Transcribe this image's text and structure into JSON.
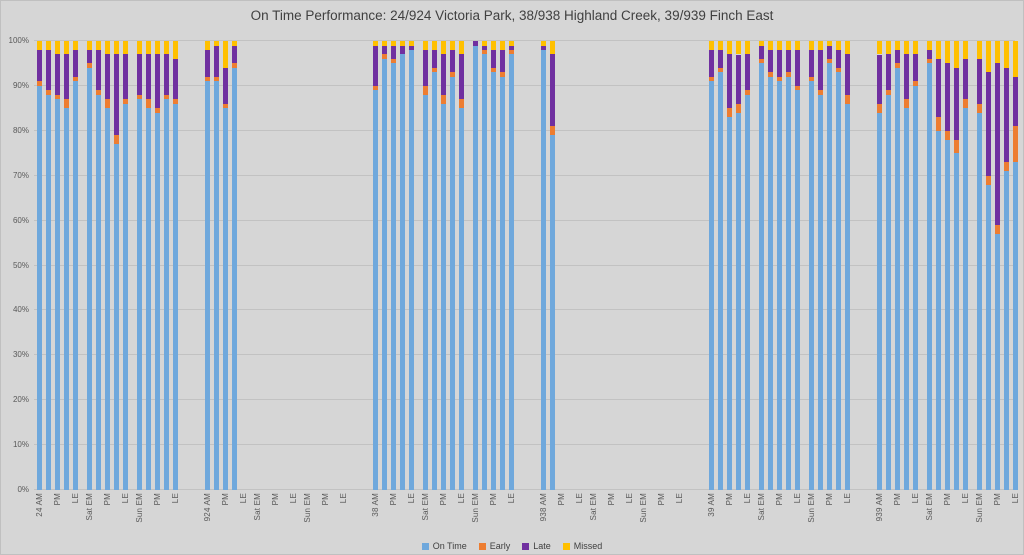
{
  "chart_data": {
    "type": "bar",
    "stacked": true,
    "percent": true,
    "title": "On Time Performance: 24/924 Victoria Park, 38/938 Highland Creek, 39/939 Finch East",
    "ylim": [
      0,
      100
    ],
    "yticks": [
      "0%",
      "10%",
      "20%",
      "30%",
      "40%",
      "50%",
      "60%",
      "70%",
      "80%",
      "90%",
      "100%"
    ],
    "gridlines": true,
    "legend_position": "bottom",
    "series": [
      "On Time",
      "Early",
      "Late",
      "Missed"
    ],
    "colors": [
      "#6FA8DC",
      "#ED7D31",
      "#7030A0",
      "#FFC000"
    ],
    "slots_per_group": 15,
    "slots_per_cluster": 5,
    "groups": [
      {
        "route": "24",
        "tick_labels": [
          {
            "slot": 0,
            "text": "24 AM"
          },
          {
            "slot": 2,
            "text": "PM"
          },
          {
            "slot": 4,
            "text": "LE"
          },
          {
            "slot": 5,
            "text": "Sat EM"
          },
          {
            "slot": 7,
            "text": "PM"
          },
          {
            "slot": 9,
            "text": "LE"
          },
          {
            "slot": 10,
            "text": "Sun EM"
          },
          {
            "slot": 12,
            "text": "PM"
          },
          {
            "slot": 14,
            "text": "LE"
          }
        ],
        "bars": [
          {
            "slot": 0,
            "values": [
              90,
              1,
              7,
              2
            ]
          },
          {
            "slot": 1,
            "values": [
              88,
              1,
              9,
              2
            ]
          },
          {
            "slot": 2,
            "values": [
              87,
              1,
              9,
              3
            ]
          },
          {
            "slot": 3,
            "values": [
              85,
              2,
              10,
              3
            ]
          },
          {
            "slot": 4,
            "values": [
              91,
              1,
              6,
              2
            ]
          },
          {
            "slot": 5,
            "values": [
              94,
              1,
              3,
              2
            ]
          },
          {
            "slot": 6,
            "values": [
              88,
              1,
              9,
              2
            ]
          },
          {
            "slot": 7,
            "values": [
              85,
              2,
              10,
              3
            ]
          },
          {
            "slot": 8,
            "values": [
              77,
              2,
              18,
              3
            ]
          },
          {
            "slot": 9,
            "values": [
              86,
              1,
              10,
              3
            ]
          },
          {
            "slot": 10,
            "values": [
              87,
              1,
              9,
              3
            ]
          },
          {
            "slot": 11,
            "values": [
              85,
              2,
              10,
              3
            ]
          },
          {
            "slot": 12,
            "values": [
              84,
              1,
              12,
              3
            ]
          },
          {
            "slot": 13,
            "values": [
              87,
              1,
              9,
              3
            ]
          },
          {
            "slot": 14,
            "values": [
              86,
              1,
              9,
              4
            ]
          }
        ]
      },
      {
        "route": "924",
        "tick_labels": [
          {
            "slot": 0,
            "text": "924 AM"
          },
          {
            "slot": 2,
            "text": "PM"
          },
          {
            "slot": 4,
            "text": "LE"
          },
          {
            "slot": 5,
            "text": "Sat EM"
          },
          {
            "slot": 7,
            "text": "PM"
          },
          {
            "slot": 9,
            "text": "LE"
          },
          {
            "slot": 10,
            "text": "Sun EM"
          },
          {
            "slot": 12,
            "text": "PM"
          },
          {
            "slot": 14,
            "text": "LE"
          }
        ],
        "bars": [
          {
            "slot": 0,
            "values": [
              91,
              1,
              6,
              2
            ]
          },
          {
            "slot": 1,
            "values": [
              91,
              1,
              7,
              1
            ]
          },
          {
            "slot": 2,
            "values": [
              85,
              1,
              8,
              6
            ]
          },
          {
            "slot": 3,
            "values": [
              94,
              1,
              4,
              1
            ]
          }
        ]
      },
      {
        "route": "38",
        "tick_labels": [
          {
            "slot": 0,
            "text": "38 AM"
          },
          {
            "slot": 2,
            "text": "PM"
          },
          {
            "slot": 4,
            "text": "LE"
          },
          {
            "slot": 5,
            "text": "Sat EM"
          },
          {
            "slot": 7,
            "text": "PM"
          },
          {
            "slot": 9,
            "text": "LE"
          },
          {
            "slot": 10,
            "text": "Sun EM"
          },
          {
            "slot": 12,
            "text": "PM"
          },
          {
            "slot": 14,
            "text": "LE"
          }
        ],
        "bars": [
          {
            "slot": 0,
            "values": [
              89,
              1,
              9,
              1
            ]
          },
          {
            "slot": 1,
            "values": [
              96,
              1,
              2,
              1
            ]
          },
          {
            "slot": 2,
            "values": [
              95,
              1,
              3,
              1
            ]
          },
          {
            "slot": 3,
            "values": [
              97,
              0,
              2,
              1
            ]
          },
          {
            "slot": 4,
            "values": [
              98,
              0,
              1,
              1
            ]
          },
          {
            "slot": 5,
            "values": [
              88,
              2,
              8,
              2
            ]
          },
          {
            "slot": 6,
            "values": [
              93,
              1,
              4,
              2
            ]
          },
          {
            "slot": 7,
            "values": [
              86,
              2,
              9,
              3
            ]
          },
          {
            "slot": 8,
            "values": [
              92,
              1,
              5,
              2
            ]
          },
          {
            "slot": 9,
            "values": [
              85,
              2,
              10,
              3
            ]
          },
          {
            "slot": 10,
            "values": [
              99,
              0,
              1,
              0
            ]
          },
          {
            "slot": 11,
            "values": [
              97,
              1,
              1,
              1
            ]
          },
          {
            "slot": 12,
            "values": [
              93,
              1,
              4,
              2
            ]
          },
          {
            "slot": 13,
            "values": [
              92,
              1,
              5,
              2
            ]
          },
          {
            "slot": 14,
            "values": [
              97,
              1,
              1,
              1
            ]
          }
        ]
      },
      {
        "route": "938",
        "tick_labels": [
          {
            "slot": 0,
            "text": "938 AM"
          },
          {
            "slot": 2,
            "text": "PM"
          },
          {
            "slot": 4,
            "text": "LE"
          },
          {
            "slot": 5,
            "text": "Sat EM"
          },
          {
            "slot": 7,
            "text": "PM"
          },
          {
            "slot": 9,
            "text": "LE"
          },
          {
            "slot": 10,
            "text": "Sun EM"
          },
          {
            "slot": 12,
            "text": "PM"
          },
          {
            "slot": 14,
            "text": "LE"
          }
        ],
        "bars": [
          {
            "slot": 0,
            "values": [
              98,
              0,
              1,
              1
            ]
          },
          {
            "slot": 1,
            "values": [
              79,
              2,
              16,
              3
            ]
          }
        ]
      },
      {
        "route": "39",
        "tick_labels": [
          {
            "slot": 0,
            "text": "39 AM"
          },
          {
            "slot": 2,
            "text": "PM"
          },
          {
            "slot": 4,
            "text": "LE"
          },
          {
            "slot": 5,
            "text": "Sat EM"
          },
          {
            "slot": 7,
            "text": "PM"
          },
          {
            "slot": 9,
            "text": "LE"
          },
          {
            "slot": 10,
            "text": "Sun EM"
          },
          {
            "slot": 12,
            "text": "PM"
          },
          {
            "slot": 14,
            "text": "LE"
          }
        ],
        "bars": [
          {
            "slot": 0,
            "values": [
              91,
              1,
              6,
              2
            ]
          },
          {
            "slot": 1,
            "values": [
              93,
              1,
              4,
              2
            ]
          },
          {
            "slot": 2,
            "values": [
              83,
              2,
              12,
              3
            ]
          },
          {
            "slot": 3,
            "values": [
              84,
              2,
              11,
              3
            ]
          },
          {
            "slot": 4,
            "values": [
              88,
              1,
              8,
              3
            ]
          },
          {
            "slot": 5,
            "values": [
              95,
              1,
              3,
              1
            ]
          },
          {
            "slot": 6,
            "values": [
              92,
              1,
              5,
              2
            ]
          },
          {
            "slot": 7,
            "values": [
              91,
              1,
              6,
              2
            ]
          },
          {
            "slot": 8,
            "values": [
              92,
              1,
              5,
              2
            ]
          },
          {
            "slot": 9,
            "values": [
              89,
              1,
              8,
              2
            ]
          },
          {
            "slot": 10,
            "values": [
              91,
              1,
              6,
              2
            ]
          },
          {
            "slot": 11,
            "values": [
              88,
              1,
              9,
              2
            ]
          },
          {
            "slot": 12,
            "values": [
              95,
              1,
              3,
              1
            ]
          },
          {
            "slot": 13,
            "values": [
              93,
              1,
              4,
              2
            ]
          },
          {
            "slot": 14,
            "values": [
              86,
              2,
              9,
              3
            ]
          }
        ]
      },
      {
        "route": "939",
        "tick_labels": [
          {
            "slot": 0,
            "text": "939 AM"
          },
          {
            "slot": 2,
            "text": "PM"
          },
          {
            "slot": 4,
            "text": "LE"
          },
          {
            "slot": 5,
            "text": "Sat EM"
          },
          {
            "slot": 7,
            "text": "PM"
          },
          {
            "slot": 9,
            "text": "LE"
          },
          {
            "slot": 10,
            "text": "Sun EM"
          },
          {
            "slot": 12,
            "text": "PM"
          },
          {
            "slot": 14,
            "text": "LE"
          }
        ],
        "bars": [
          {
            "slot": 0,
            "values": [
              84,
              2,
              11,
              3
            ]
          },
          {
            "slot": 1,
            "values": [
              88,
              1,
              8,
              3
            ]
          },
          {
            "slot": 2,
            "values": [
              94,
              1,
              3,
              2
            ]
          },
          {
            "slot": 3,
            "values": [
              85,
              2,
              10,
              3
            ]
          },
          {
            "slot": 4,
            "values": [
              90,
              1,
              6,
              3
            ]
          },
          {
            "slot": 5,
            "values": [
              95,
              1,
              2,
              2
            ]
          },
          {
            "slot": 6,
            "values": [
              80,
              3,
              13,
              4
            ]
          },
          {
            "slot": 7,
            "values": [
              78,
              2,
              15,
              5
            ]
          },
          {
            "slot": 8,
            "values": [
              75,
              3,
              16,
              6
            ]
          },
          {
            "slot": 9,
            "values": [
              85,
              2,
              9,
              4
            ]
          },
          {
            "slot": 10,
            "values": [
              84,
              2,
              10,
              4
            ]
          },
          {
            "slot": 11,
            "values": [
              68,
              2,
              23,
              7
            ]
          },
          {
            "slot": 12,
            "values": [
              57,
              2,
              36,
              5
            ]
          },
          {
            "slot": 13,
            "values": [
              71,
              2,
              21,
              6
            ]
          },
          {
            "slot": 14,
            "values": [
              73,
              8,
              11,
              8
            ]
          }
        ]
      }
    ]
  }
}
